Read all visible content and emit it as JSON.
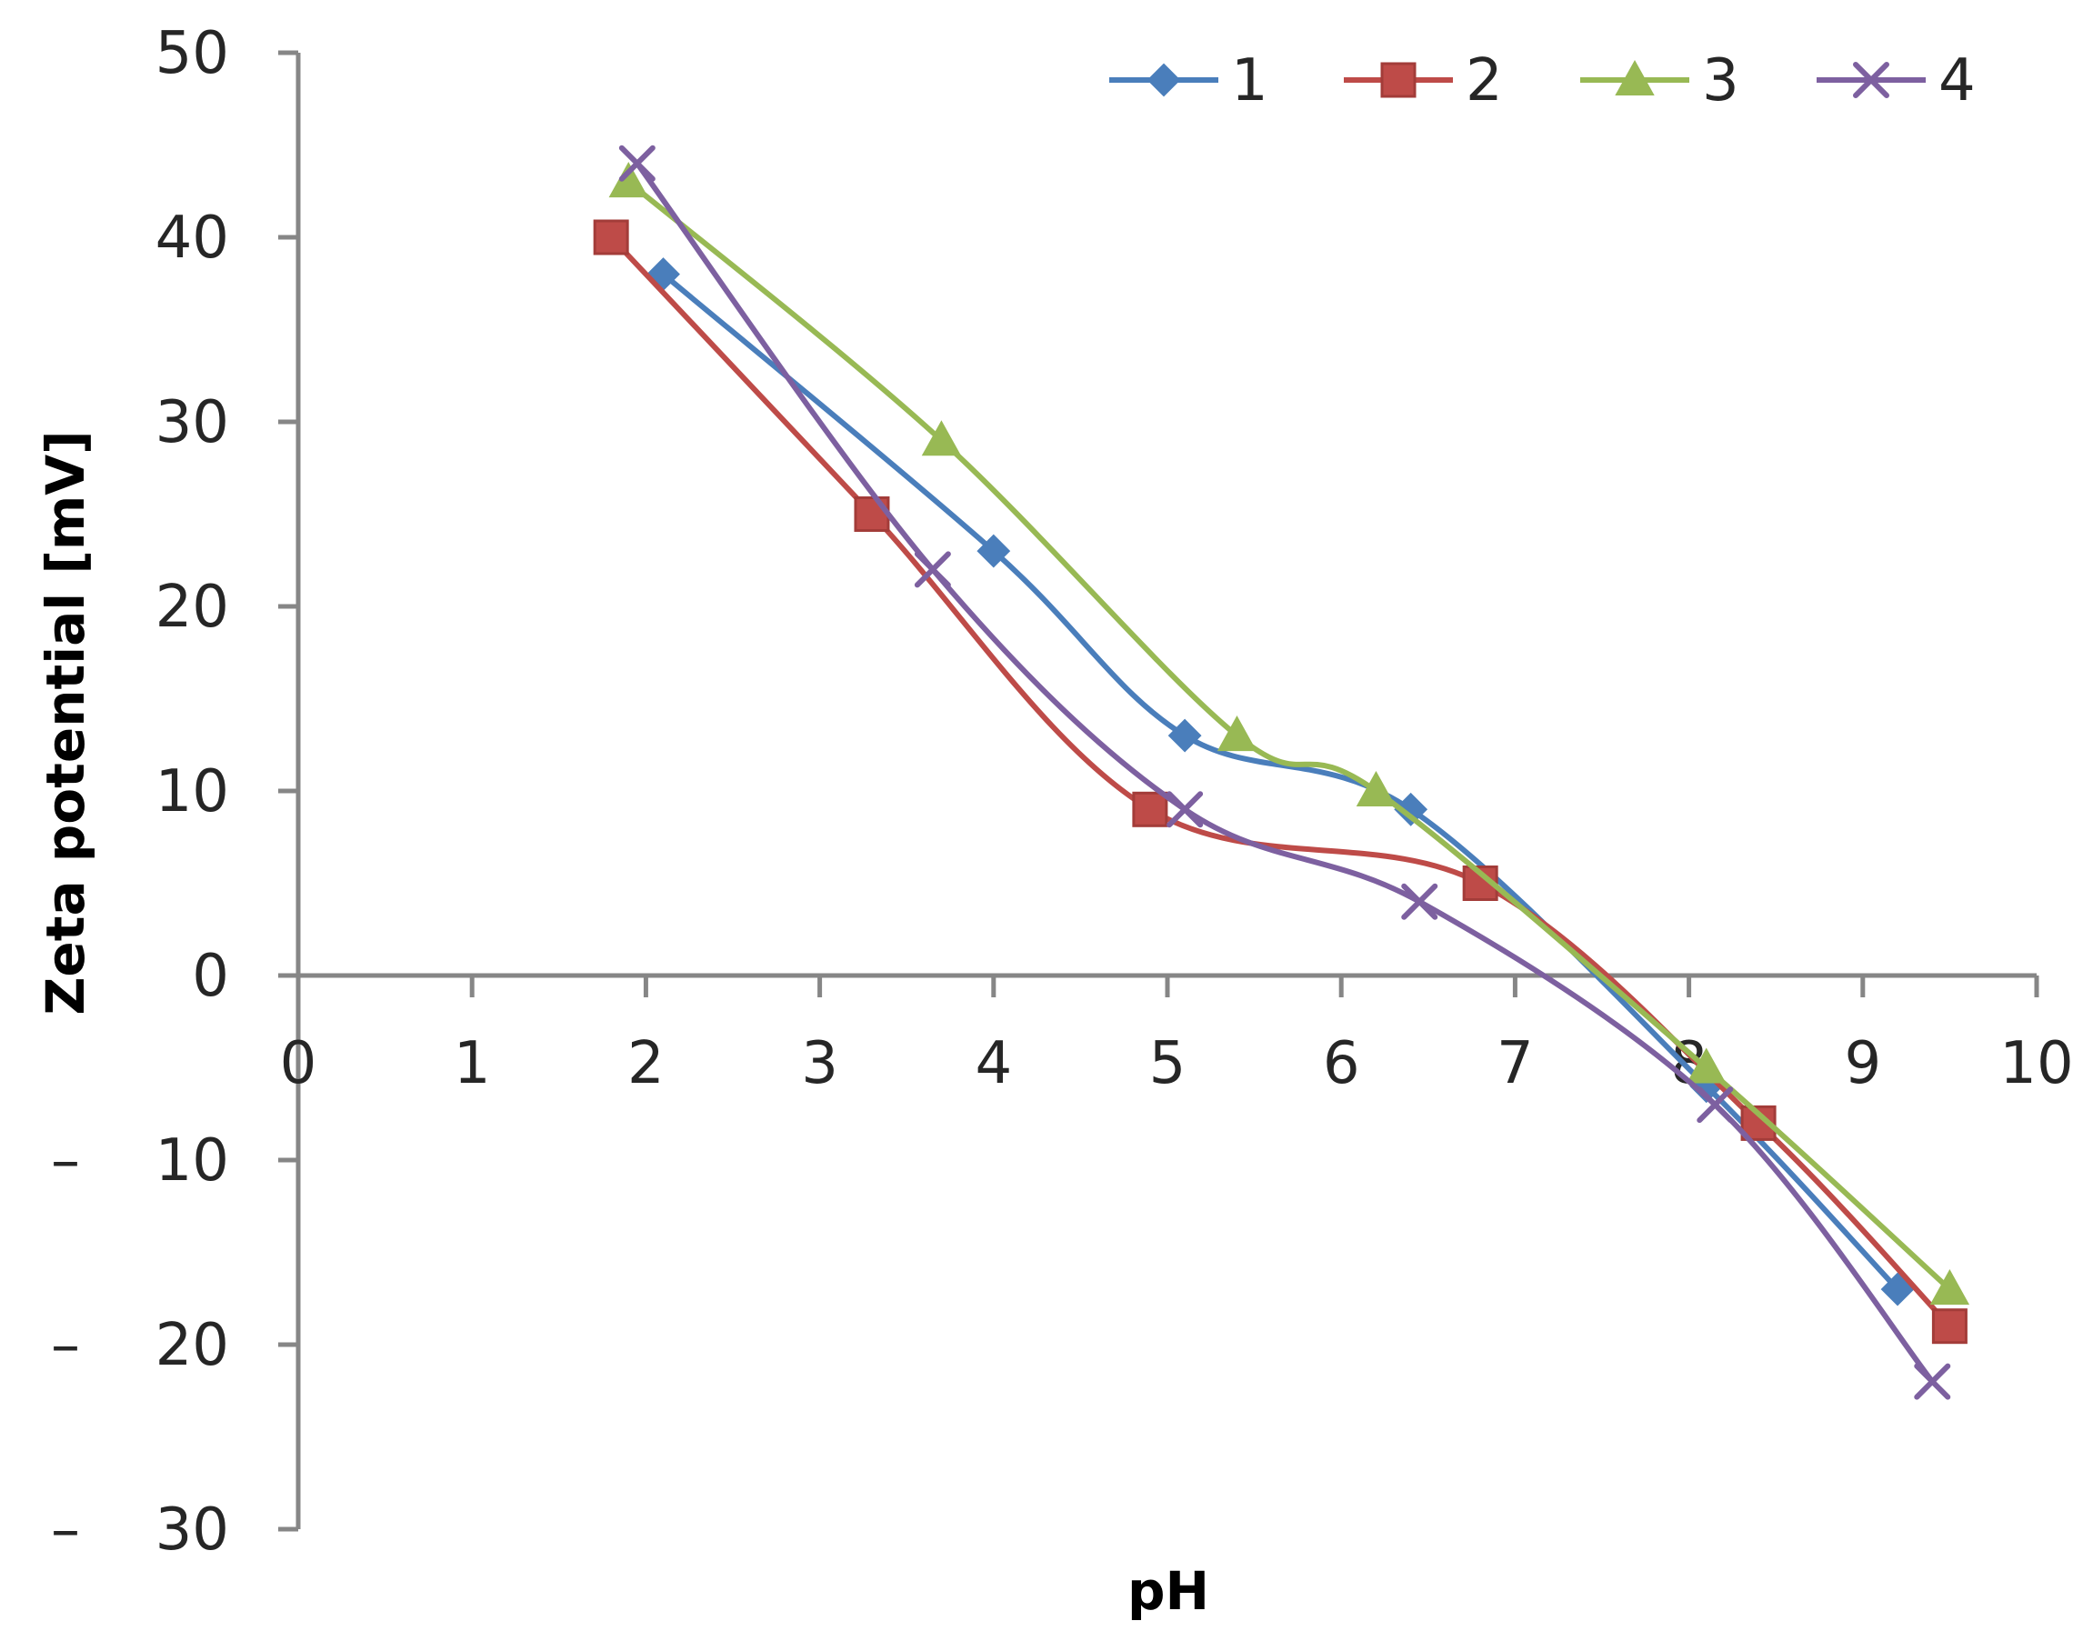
{
  "chart_data": {
    "type": "line",
    "title": "",
    "xlabel": "pH",
    "ylabel": "Zeta potential [mV]",
    "xlim": [
      0,
      10
    ],
    "ylim": [
      -30,
      50
    ],
    "xticks": [
      0,
      1,
      2,
      3,
      4,
      5,
      6,
      7,
      8,
      9,
      10
    ],
    "xtick_labels": [
      "0",
      "1",
      "2",
      "3",
      "4",
      "5",
      "6",
      "7",
      "8",
      "9",
      "10"
    ],
    "yticks": [
      50,
      40,
      30,
      20,
      10,
      0,
      -10,
      -20,
      -30
    ],
    "ytick_labels": [
      "50",
      "40",
      "30",
      "20",
      "10",
      "0",
      "10",
      "20",
      "30"
    ],
    "ytick_negative_prefix": "–",
    "grid": false,
    "legend": "top-right",
    "smooth": true,
    "series": [
      {
        "name": "1",
        "color": "#4a7ebb",
        "marker": "diamond",
        "x": [
          2.1,
          4.0,
          5.1,
          6.4,
          8.1,
          9.2
        ],
        "y": [
          38,
          23,
          13,
          9,
          -6,
          -17
        ]
      },
      {
        "name": "2",
        "color": "#be4b48",
        "marker": "square",
        "x": [
          1.8,
          3.3,
          4.9,
          6.8,
          8.4,
          9.5
        ],
        "y": [
          40,
          25,
          9,
          5,
          -8,
          -19
        ]
      },
      {
        "name": "3",
        "color": "#98b954",
        "marker": "triangle",
        "x": [
          1.9,
          3.7,
          5.4,
          6.2,
          8.1,
          9.5
        ],
        "y": [
          43,
          29,
          13,
          10,
          -5,
          -17
        ]
      },
      {
        "name": "4",
        "color": "#7d60a0",
        "marker": "x",
        "x": [
          1.95,
          3.65,
          5.1,
          6.45,
          8.15,
          9.4
        ],
        "y": [
          44,
          22,
          9,
          4,
          -7,
          -22
        ]
      }
    ]
  }
}
